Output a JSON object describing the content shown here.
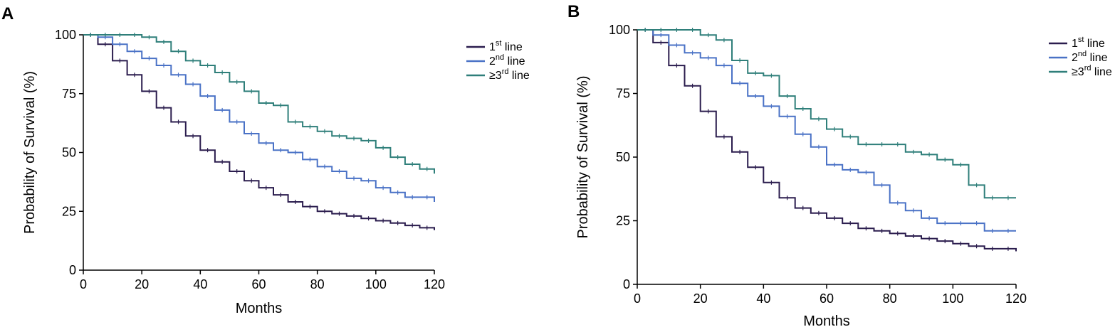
{
  "chart_data": [
    {
      "panel_label": "A",
      "type": "line",
      "step": true,
      "xlabel": "Months",
      "ylabel": "Probability of Survival (%)",
      "xlim": [
        0,
        120
      ],
      "ylim": [
        0,
        100
      ],
      "xticks": [
        "0",
        "20",
        "40",
        "60",
        "80",
        "100",
        "120"
      ],
      "yticks": [
        "0",
        "25",
        "50",
        "75",
        "100"
      ],
      "legend_position": "top-right",
      "series": [
        {
          "name": "1st line",
          "label_pre": "1",
          "label_sup": "st",
          "label_post": " line",
          "color": "#2b1d4e",
          "x": [
            0,
            5,
            10,
            15,
            20,
            25,
            30,
            35,
            40,
            45,
            50,
            55,
            60,
            65,
            70,
            75,
            80,
            85,
            90,
            95,
            100,
            105,
            110,
            115,
            120
          ],
          "y": [
            100,
            96,
            89,
            83,
            76,
            69,
            63,
            57,
            51,
            46,
            42,
            38,
            35,
            32,
            29,
            27,
            25,
            24,
            23,
            22,
            21,
            20,
            19,
            18,
            17
          ]
        },
        {
          "name": "2nd line",
          "label_pre": "2",
          "label_sup": "nd",
          "label_post": " line",
          "color": "#4a72c6",
          "x": [
            0,
            5,
            10,
            15,
            20,
            25,
            30,
            35,
            40,
            45,
            50,
            55,
            60,
            65,
            70,
            75,
            80,
            85,
            90,
            95,
            100,
            105,
            110,
            115,
            120
          ],
          "y": [
            100,
            99,
            96,
            93,
            90,
            87,
            83,
            79,
            74,
            68,
            63,
            58,
            54,
            51,
            50,
            47,
            44,
            42,
            39,
            38,
            35,
            33,
            31,
            31,
            29
          ]
        },
        {
          "name": "≥3rd line",
          "label_pre": "≥3",
          "label_sup": "rd",
          "label_post": " line",
          "color": "#2f7f7a",
          "x": [
            0,
            5,
            10,
            15,
            20,
            25,
            30,
            35,
            40,
            45,
            50,
            55,
            60,
            65,
            70,
            75,
            80,
            85,
            90,
            95,
            100,
            105,
            110,
            115,
            120
          ],
          "y": [
            100,
            100,
            100,
            100,
            99,
            97,
            93,
            89,
            87,
            84,
            80,
            76,
            71,
            70,
            63,
            61,
            59,
            57,
            56,
            55,
            52,
            48,
            45,
            43,
            41
          ]
        }
      ]
    },
    {
      "panel_label": "B",
      "type": "line",
      "step": true,
      "xlabel": "Months",
      "ylabel": "Probability of Survival (%)",
      "xlim": [
        0,
        120
      ],
      "ylim": [
        0,
        100
      ],
      "xticks": [
        "0",
        "20",
        "40",
        "60",
        "80",
        "100",
        "120"
      ],
      "yticks": [
        "0",
        "25",
        "50",
        "75",
        "100"
      ],
      "legend_position": "top-right",
      "series": [
        {
          "name": "1st line",
          "label_pre": "1",
          "label_sup": "st",
          "label_post": " line",
          "color": "#2b1d4e",
          "x": [
            0,
            5,
            10,
            15,
            20,
            25,
            30,
            35,
            40,
            45,
            50,
            55,
            60,
            65,
            70,
            75,
            80,
            85,
            90,
            95,
            100,
            105,
            110,
            115,
            120
          ],
          "y": [
            100,
            95,
            86,
            78,
            68,
            58,
            52,
            46,
            40,
            34,
            30,
            28,
            26,
            24,
            22,
            21,
            20,
            19,
            18,
            17,
            16,
            15,
            14,
            14,
            13
          ]
        },
        {
          "name": "2nd line",
          "label_pre": "2",
          "label_sup": "nd",
          "label_post": " line",
          "color": "#4a72c6",
          "x": [
            0,
            5,
            10,
            15,
            20,
            25,
            30,
            35,
            40,
            45,
            50,
            55,
            60,
            65,
            70,
            75,
            80,
            85,
            90,
            95,
            100,
            105,
            110,
            115,
            120
          ],
          "y": [
            100,
            98,
            94,
            91,
            89,
            86,
            79,
            74,
            70,
            66,
            59,
            54,
            47,
            45,
            44,
            39,
            32,
            29,
            26,
            24,
            24,
            24,
            21,
            21,
            21
          ]
        },
        {
          "name": "≥3rd line",
          "label_pre": "≥3",
          "label_sup": "rd",
          "label_post": " line",
          "color": "#2f7f7a",
          "x": [
            0,
            5,
            10,
            15,
            20,
            25,
            30,
            35,
            40,
            45,
            50,
            55,
            60,
            65,
            70,
            75,
            80,
            85,
            90,
            95,
            100,
            105,
            110,
            115,
            120
          ],
          "y": [
            100,
            100,
            100,
            100,
            98,
            96,
            88,
            83,
            82,
            74,
            69,
            65,
            61,
            58,
            55,
            55,
            55,
            52,
            51,
            49,
            47,
            39,
            34,
            34,
            34
          ]
        }
      ]
    }
  ]
}
